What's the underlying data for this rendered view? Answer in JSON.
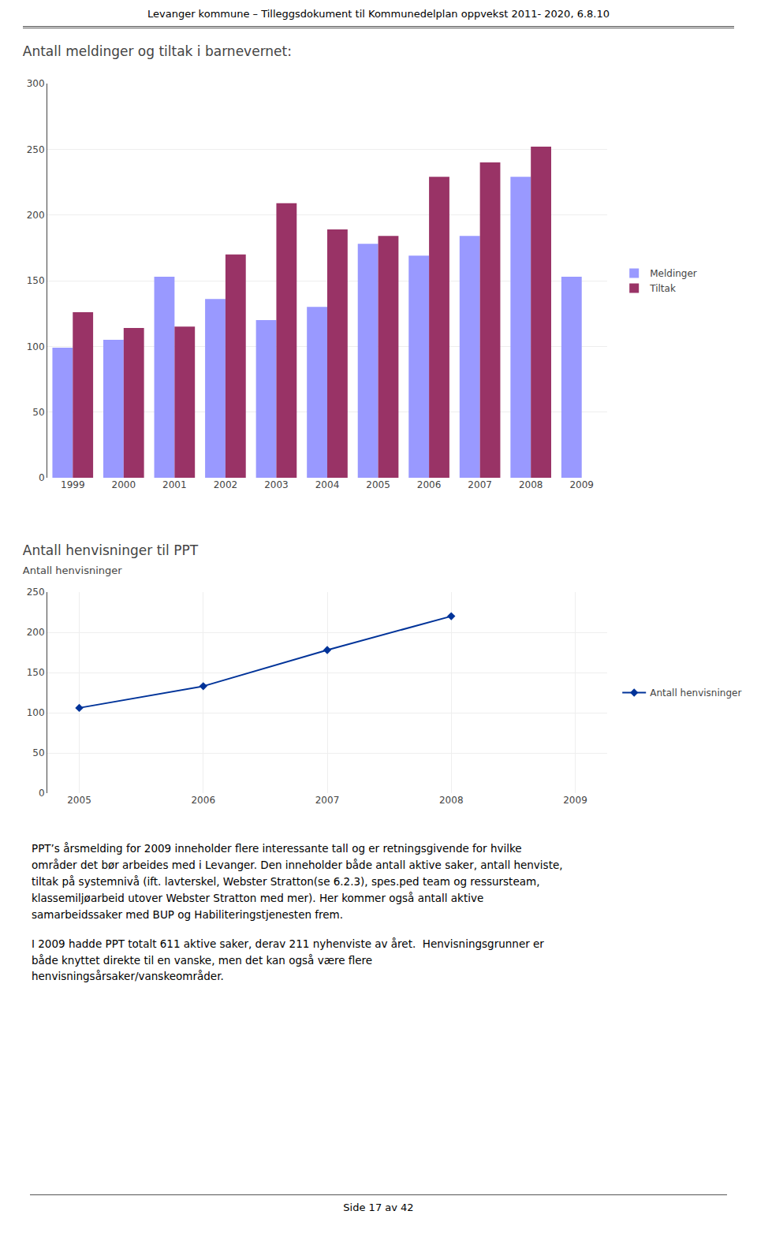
{
  "page_title": "Levanger kommune – Tilleggsdokument til Kommunedelplan oppvekst 2011- 2020, 6.8.10",
  "chart_data": [
    {
      "type": "bar",
      "title": "Antall meldinger og tiltak i barnevernet:",
      "categories": [
        "1999",
        "2000",
        "2001",
        "2002",
        "2003",
        "2004",
        "2005",
        "2006",
        "2007",
        "2008",
        "2009"
      ],
      "series": [
        {
          "name": "Meldinger",
          "color": "#9999FF",
          "values": [
            99,
            105,
            153,
            136,
            120,
            130,
            178,
            169,
            184,
            229,
            153
          ]
        },
        {
          "name": "Tiltak",
          "color": "#993366",
          "values": [
            126,
            114,
            115,
            170,
            209,
            189,
            184,
            229,
            240,
            252,
            null
          ]
        }
      ],
      "ylim": [
        0,
        300
      ],
      "yticks": [
        0,
        50,
        100,
        150,
        200,
        250,
        300
      ],
      "grid": true,
      "legend": "right"
    },
    {
      "type": "line",
      "title": "Antall henvisninger til PPT",
      "subtitle": "Antall henvisninger",
      "categories": [
        "2005",
        "2006",
        "2007",
        "2008",
        "2009"
      ],
      "series": [
        {
          "name": "Antall henvisninger",
          "color": "#003399",
          "marker": "diamond",
          "values": [
            106,
            133,
            178,
            220,
            null
          ]
        }
      ],
      "ylim": [
        0,
        250
      ],
      "yticks": [
        0,
        50,
        100,
        150,
        200,
        250
      ],
      "grid": true,
      "legend": "right"
    }
  ],
  "body_text": [
    [
      "PPT’s årsmelding for 2009 inneholder flere interessante tall og er retningsgivende for hvilke",
      "områder det bør arbeides med i Levanger. Den inneholder både antall aktive saker, antall henviste,",
      "tiltak på systemnivå (ift. lavterskel, Webster Stratton(se 6.2.3), spes.ped team og ressursteam,",
      "klassemiljøarbeid utover Webster Stratton med mer). Her kommer også antall aktive",
      "samarbeidssaker med BUP og Habiliteringstjenesten frem."
    ],
    [
      "I 2009 hadde PPT totalt 611 aktive saker, derav 211 nyhenviste av året.  Henvisningsgrunner er",
      "både knyttet direkte til en vanske, men det kan også være flere",
      "henvisningsårsaker/vanskeområder."
    ]
  ],
  "footer": "Side 17 av 42"
}
